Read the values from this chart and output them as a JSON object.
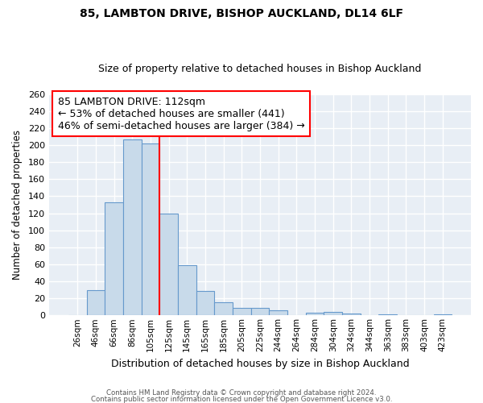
{
  "title": "85, LAMBTON DRIVE, BISHOP AUCKLAND, DL14 6LF",
  "subtitle": "Size of property relative to detached houses in Bishop Auckland",
  "xlabel": "Distribution of detached houses by size in Bishop Auckland",
  "ylabel": "Number of detached properties",
  "bar_labels": [
    "26sqm",
    "46sqm",
    "66sqm",
    "86sqm",
    "105sqm",
    "125sqm",
    "145sqm",
    "165sqm",
    "185sqm",
    "205sqm",
    "225sqm",
    "244sqm",
    "264sqm",
    "284sqm",
    "304sqm",
    "324sqm",
    "344sqm",
    "363sqm",
    "383sqm",
    "403sqm",
    "423sqm"
  ],
  "bar_values": [
    0,
    30,
    133,
    207,
    202,
    120,
    59,
    29,
    15,
    9,
    9,
    6,
    0,
    3,
    4,
    2,
    0,
    1,
    0,
    0,
    1
  ],
  "bar_color": "#c8daea",
  "bar_edge_color": "#6699cc",
  "red_line_x": 4.5,
  "annotation_title": "85 LAMBTON DRIVE: 112sqm",
  "annotation_line1": "← 53% of detached houses are smaller (441)",
  "annotation_line2": "46% of semi-detached houses are larger (384) →",
  "ylim": [
    0,
    260
  ],
  "yticks": [
    0,
    20,
    40,
    60,
    80,
    100,
    120,
    140,
    160,
    180,
    200,
    220,
    240,
    260
  ],
  "footer1": "Contains HM Land Registry data © Crown copyright and database right 2024.",
  "footer2": "Contains public sector information licensed under the Open Government Licence v3.0.",
  "bg_color": "#ffffff",
  "plot_bg_color": "#e8eef5",
  "grid_color": "#ffffff",
  "title_fontsize": 10,
  "subtitle_fontsize": 9
}
